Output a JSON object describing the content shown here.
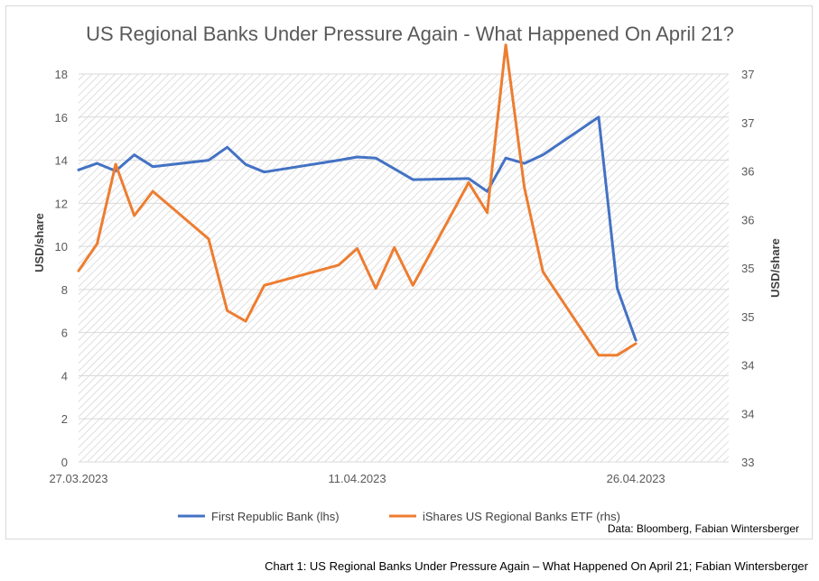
{
  "chart_data": {
    "type": "line",
    "title": "US Regional Banks Under Pressure Again - What Happened On April 21?",
    "ylabel_left": "USD/share",
    "ylabel_right": "USD/share",
    "ylim_left": [
      0,
      18
    ],
    "ylim_right": [
      33,
      37
    ],
    "yticks_left": [
      "0",
      "2",
      "4",
      "6",
      "8",
      "10",
      "12",
      "14",
      "16",
      "18"
    ],
    "yticks_right": [
      "33",
      "34",
      "34",
      "35",
      "35",
      "36",
      "36",
      "37",
      "37"
    ],
    "x_tick_labels": [
      "27.03.2023",
      "11.04.2023",
      "26.04.2023"
    ],
    "x_tick_dates": [
      "2023-03-27",
      "2023-04-11",
      "2023-04-26"
    ],
    "xlim": [
      "2023-03-27",
      "2023-05-01"
    ],
    "grid": true,
    "legend_position": "bottom",
    "series": [
      {
        "name": "First Republic Bank (lhs)",
        "axis": "left",
        "color": "#4472c4",
        "x": [
          "2023-03-27",
          "2023-03-28",
          "2023-03-29",
          "2023-03-30",
          "2023-03-31",
          "2023-04-03",
          "2023-04-04",
          "2023-04-05",
          "2023-04-06",
          "2023-04-10",
          "2023-04-11",
          "2023-04-12",
          "2023-04-13",
          "2023-04-14",
          "2023-04-17",
          "2023-04-18",
          "2023-04-19",
          "2023-04-20",
          "2023-04-21",
          "2023-04-24",
          "2023-04-25",
          "2023-04-26"
        ],
        "values": [
          13.55,
          13.85,
          13.5,
          14.25,
          13.7,
          14.0,
          14.6,
          13.8,
          13.45,
          14.0,
          14.15,
          14.1,
          13.6,
          13.1,
          13.15,
          12.55,
          14.1,
          13.85,
          14.25,
          16.0,
          8.05,
          5.65
        ]
      },
      {
        "name": "iShares US Regional Banks ETF (rhs)",
        "axis": "right",
        "color": "#ed7d31",
        "x": [
          "2023-03-27",
          "2023-03-28",
          "2023-03-29",
          "2023-03-30",
          "2023-03-31",
          "2023-04-03",
          "2023-04-04",
          "2023-04-05",
          "2023-04-06",
          "2023-04-10",
          "2023-04-11",
          "2023-04-12",
          "2023-04-13",
          "2023-04-14",
          "2023-04-17",
          "2023-04-18",
          "2023-04-19",
          "2023-04-20",
          "2023-04-21",
          "2023-04-24",
          "2023-04-25",
          "2023-04-26"
        ],
        "values": [
          34.97,
          35.25,
          36.07,
          35.54,
          35.79,
          35.3,
          34.56,
          34.45,
          34.82,
          35.03,
          35.2,
          34.79,
          35.21,
          34.82,
          35.88,
          35.57,
          37.3,
          35.83,
          34.96,
          34.1,
          34.1,
          34.22
        ]
      }
    ],
    "source": "Data: Bloomberg, Fabian Wintersberger"
  },
  "caption": "Chart 1: US Regional Banks Under Pressure Again – What Happened On April 21; Fabian Wintersberger"
}
